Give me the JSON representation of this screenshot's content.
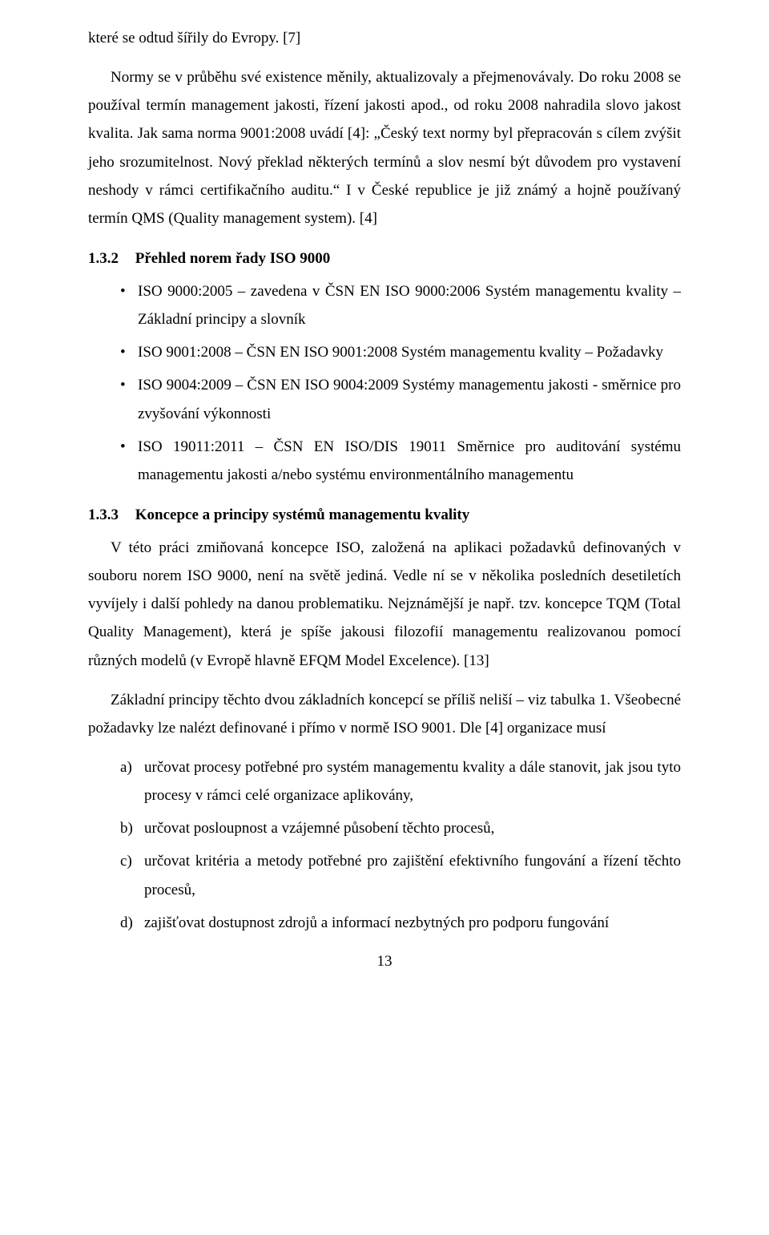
{
  "para1": "které se odtud šířily do Evropy. [7]",
  "para2": "Normy se v průběhu své existence měnily, aktualizovaly a přejmenovávaly. Do roku 2008 se používal termín management jakosti, řízení jakosti apod., od roku 2008 nahradila slovo jakost kvalita. Jak sama norma 9001:2008 uvádí [4]: „Český text normy byl přepracován s cílem zvýšit jeho srozumitelnost. Nový překlad některých termínů a slov nesmí být důvodem pro vystavení neshody v rámci certifikačního auditu.“ I v České republice je již známý a hojně používaný termín QMS (Quality management system). [4]",
  "section132": {
    "num": "1.3.2",
    "title": "Přehled norem řady ISO 9000"
  },
  "bullets": {
    "b1": "ISO 9000:2005 – zavedena v ČSN EN ISO 9000:2006 Systém managementu kvality – Základní principy a slovník",
    "b2": "ISO 9001:2008 – ČSN EN ISO 9001:2008 Systém managementu kvality – Požadavky",
    "b3": "ISO 9004:2009 – ČSN EN ISO 9004:2009 Systémy managementu jakosti - směrnice pro zvyšování výkonnosti",
    "b4": "ISO 19011:2011 – ČSN EN ISO/DIS 19011 Směrnice pro auditování systému managementu jakosti a/nebo systému environmentálního managementu"
  },
  "section133": {
    "num": "1.3.3",
    "title": "Koncepce a principy systémů managementu kvality"
  },
  "para3": "V této práci zmiňovaná koncepce ISO, založená na aplikaci požadavků definovaných v souboru norem ISO 9000, není na světě jediná. Vedle ní se v několika posledních desetiletích vyvíjely i další pohledy na danou problematiku. Nejznámější je např. tzv. koncepce TQM (Total Quality Management), která je spíše jakousi filozofií managementu realizovanou pomocí různých modelů (v Evropě hlavně EFQM Model Excelence). [13]",
  "para4": "Základní principy těchto dvou základních koncepcí se příliš neliší – viz tabulka 1. Všeobecné požadavky lze nalézt definované i přímo v normě ISO 9001. Dle [4] organizace musí",
  "letters": {
    "a": "určovat procesy potřebné pro systém managementu kvality a dále stanovit, jak jsou tyto procesy v rámci celé organizace aplikovány,",
    "b": "určovat posloupnost a vzájemné působení těchto procesů,",
    "c": "určovat kritéria a metody potřebné pro zajištění efektivního fungování a řízení těchto procesů,",
    "d": "zajišťovat dostupnost zdrojů a informací nezbytných pro podporu fungování"
  },
  "pageNumber": "13"
}
